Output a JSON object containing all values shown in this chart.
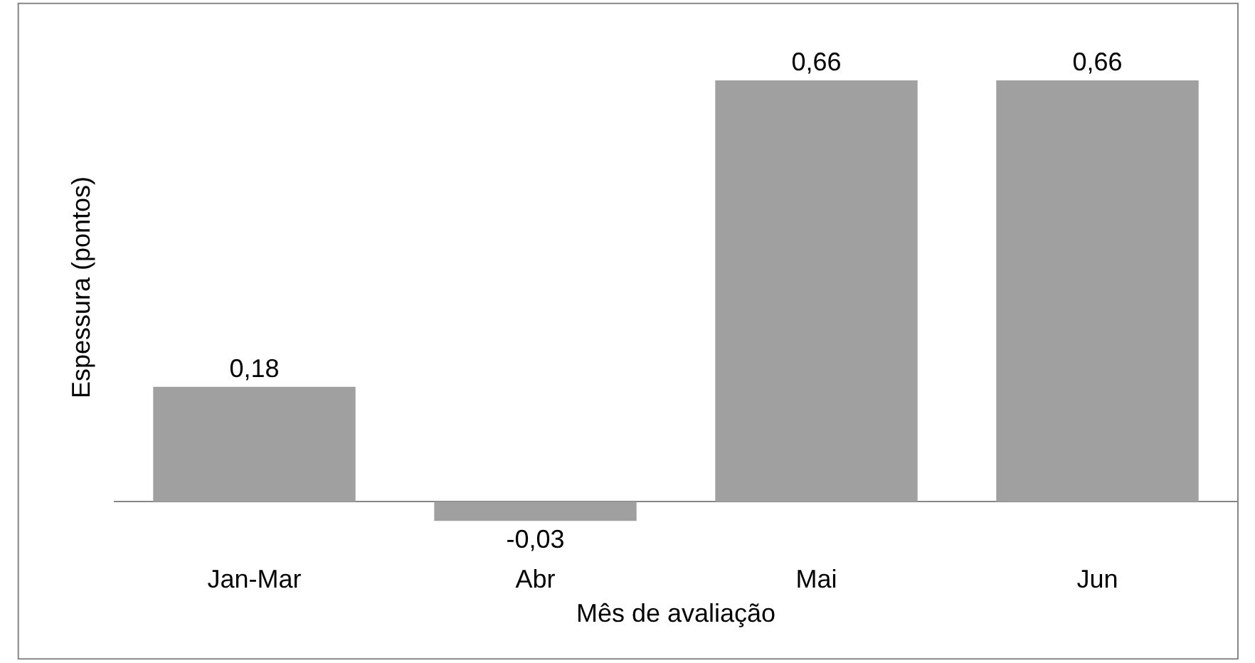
{
  "chart_data": {
    "type": "bar",
    "xlabel": "Mês de avaliação",
    "ylabel": "Espessura (pontos)",
    "categories": [
      "Jan-Mar",
      "Abr",
      "Mai",
      "Jun"
    ],
    "values": [
      0.18,
      -0.03,
      0.66,
      0.66
    ],
    "color": "#a0a0a0",
    "value_labels": [
      "0,18",
      "-0,03",
      "0,66",
      "0,66"
    ]
  }
}
